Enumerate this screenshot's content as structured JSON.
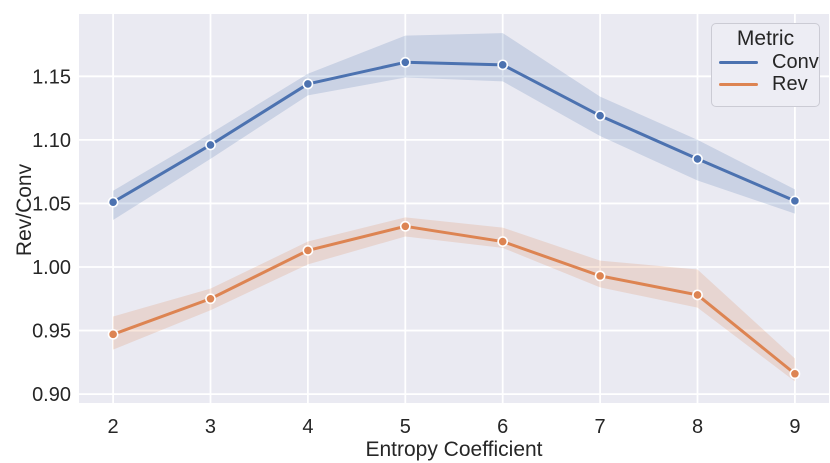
{
  "chart_data": {
    "type": "line",
    "title": "",
    "xlabel": "Entropy Coefficient",
    "ylabel": "Rev/Conv",
    "x": [
      2,
      3,
      4,
      5,
      6,
      7,
      8,
      9
    ],
    "series": [
      {
        "name": "Conv",
        "color": "#4c72b0",
        "values": [
          1.051,
          1.096,
          1.144,
          1.161,
          1.159,
          1.119,
          1.085,
          1.052
        ],
        "ci_low": [
          1.037,
          1.085,
          1.135,
          1.149,
          1.146,
          1.103,
          1.068,
          1.042
        ],
        "ci_high": [
          1.06,
          1.105,
          1.152,
          1.182,
          1.184,
          1.134,
          1.1,
          1.061
        ]
      },
      {
        "name": "Rev",
        "color": "#dd8452",
        "values": [
          0.947,
          0.975,
          1.013,
          1.032,
          1.02,
          0.993,
          0.978,
          0.916
        ],
        "ci_low": [
          0.935,
          0.966,
          1.002,
          1.024,
          1.015,
          0.984,
          0.968,
          0.91
        ],
        "ci_high": [
          0.961,
          0.983,
          1.02,
          1.039,
          1.031,
          1.005,
          0.998,
          0.928
        ]
      }
    ],
    "xticks": [
      2,
      3,
      4,
      5,
      6,
      7,
      8,
      9
    ],
    "yticks": [
      0.9,
      0.95,
      1.0,
      1.05,
      1.1,
      1.15
    ],
    "xlim": [
      1.65,
      9.35
    ],
    "ylim": [
      0.893,
      1.199
    ],
    "grid": true,
    "legend": {
      "title": "Metric",
      "position": "upper right"
    },
    "style": {
      "plot_bg": "#eaeaf2",
      "grid_color": "#ffffff",
      "text_color": "#262626",
      "band_alpha": 0.2,
      "marker_edge": "#ffffff"
    }
  }
}
